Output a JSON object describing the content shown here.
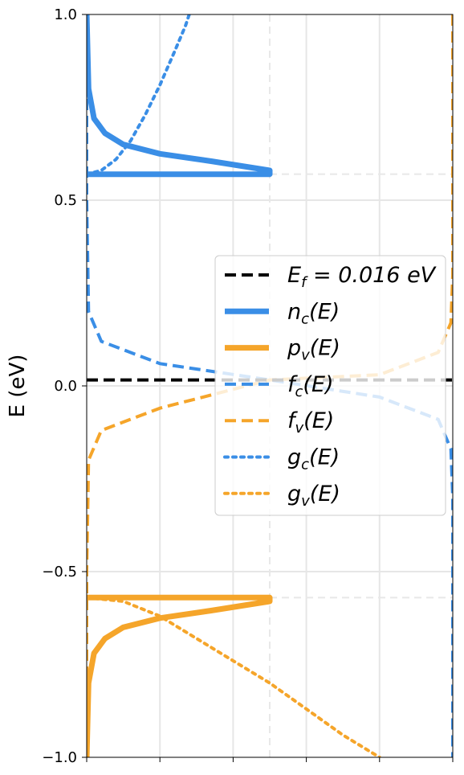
{
  "chart_data": {
    "type": "line",
    "title": "",
    "xlabel": "",
    "ylabel": "E (eV)",
    "ylim": [
      -1.0,
      1.0
    ],
    "xlim": [
      0,
      1
    ],
    "yticks": [
      -1.0,
      -0.5,
      0.0,
      0.5,
      1.0
    ],
    "ytick_labels": [
      "−1.0",
      "−0.5",
      "0.0",
      "0.5",
      "1.0"
    ],
    "xticks": [
      0,
      0.2,
      0.4,
      0.6,
      0.8,
      1.0
    ],
    "grid": true,
    "Ec": 0.57,
    "Ev": -0.57,
    "Ef": 0.016,
    "legend_position": "center-right",
    "colors": {
      "conduction": "#3a8ee6",
      "valence": "#f5a52a",
      "fermi": "#000000"
    },
    "series": [
      {
        "name": "E_f = 0.016 eV",
        "style": "dashed",
        "color": "#000000",
        "points": [
          [
            0,
            0.016
          ],
          [
            1,
            0.016
          ]
        ]
      },
      {
        "name": "n_c(E)",
        "style": "solid",
        "color": "#3a8ee6",
        "points": [
          [
            0.0,
            0.57
          ],
          [
            0.5,
            0.57
          ],
          [
            0.5,
            0.58
          ],
          [
            0.34,
            0.605
          ],
          [
            0.2,
            0.625
          ],
          [
            0.1,
            0.65
          ],
          [
            0.05,
            0.68
          ],
          [
            0.02,
            0.72
          ],
          [
            0.005,
            0.8
          ],
          [
            0.0,
            1.0
          ]
        ]
      },
      {
        "name": "p_v(E)",
        "style": "solid",
        "color": "#f5a52a",
        "points": [
          [
            0.0,
            -0.57
          ],
          [
            0.5,
            -0.57
          ],
          [
            0.5,
            -0.58
          ],
          [
            0.34,
            -0.605
          ],
          [
            0.2,
            -0.625
          ],
          [
            0.1,
            -0.65
          ],
          [
            0.05,
            -0.68
          ],
          [
            0.02,
            -0.72
          ],
          [
            0.005,
            -0.8
          ],
          [
            0.0,
            -1.0
          ]
        ]
      },
      {
        "name": "f_c(E)",
        "style": "dashed",
        "color": "#3a8ee6",
        "points": [
          [
            0.0,
            1.0
          ],
          [
            0.0,
            0.5
          ],
          [
            0.005,
            0.2
          ],
          [
            0.04,
            0.12
          ],
          [
            0.2,
            0.06
          ],
          [
            0.5,
            0.016
          ],
          [
            0.8,
            -0.03
          ],
          [
            0.96,
            -0.09
          ],
          [
            0.995,
            -0.17
          ],
          [
            1.0,
            -0.3
          ],
          [
            1.0,
            -1.0
          ]
        ]
      },
      {
        "name": "f_v(E)",
        "style": "dashed",
        "color": "#f5a52a",
        "points": [
          [
            1.0,
            1.0
          ],
          [
            1.0,
            0.3
          ],
          [
            0.995,
            0.17
          ],
          [
            0.96,
            0.09
          ],
          [
            0.8,
            0.03
          ],
          [
            0.5,
            0.016
          ],
          [
            0.2,
            -0.06
          ],
          [
            0.04,
            -0.12
          ],
          [
            0.005,
            -0.2
          ],
          [
            0.0,
            -0.5
          ],
          [
            0.0,
            -1.0
          ]
        ]
      },
      {
        "name": "g_c(E)",
        "style": "dotted",
        "color": "#3a8ee6",
        "points": [
          [
            0.0,
            0.57
          ],
          [
            0.04,
            0.58
          ],
          [
            0.08,
            0.61
          ],
          [
            0.12,
            0.66
          ],
          [
            0.16,
            0.73
          ],
          [
            0.2,
            0.81
          ],
          [
            0.24,
            0.9
          ],
          [
            0.27,
            0.97
          ],
          [
            0.28,
            1.0
          ]
        ]
      },
      {
        "name": "g_v(E)",
        "style": "dotted",
        "color": "#f5a52a",
        "points": [
          [
            0.0,
            -0.57
          ],
          [
            0.1,
            -0.58
          ],
          [
            0.2,
            -0.62
          ],
          [
            0.3,
            -0.68
          ],
          [
            0.4,
            -0.74
          ],
          [
            0.5,
            -0.8
          ],
          [
            0.6,
            -0.87
          ],
          [
            0.7,
            -0.94
          ],
          [
            0.8,
            -1.0
          ]
        ]
      }
    ],
    "legend": [
      {
        "label": "E_f = 0.016 eV",
        "color": "#000000",
        "style": "dashed"
      },
      {
        "label": "n_c(E)",
        "color": "#3a8ee6",
        "style": "solid"
      },
      {
        "label": "p_v(E)",
        "color": "#f5a52a",
        "style": "solid"
      },
      {
        "label": "f_c(E)",
        "color": "#3a8ee6",
        "style": "dashed"
      },
      {
        "label": "f_v(E)",
        "color": "#f5a52a",
        "style": "dashed"
      },
      {
        "label": "g_c(E)",
        "color": "#3a8ee6",
        "style": "dotted"
      },
      {
        "label": "g_v(E)",
        "color": "#f5a52a",
        "style": "dotted"
      }
    ]
  }
}
